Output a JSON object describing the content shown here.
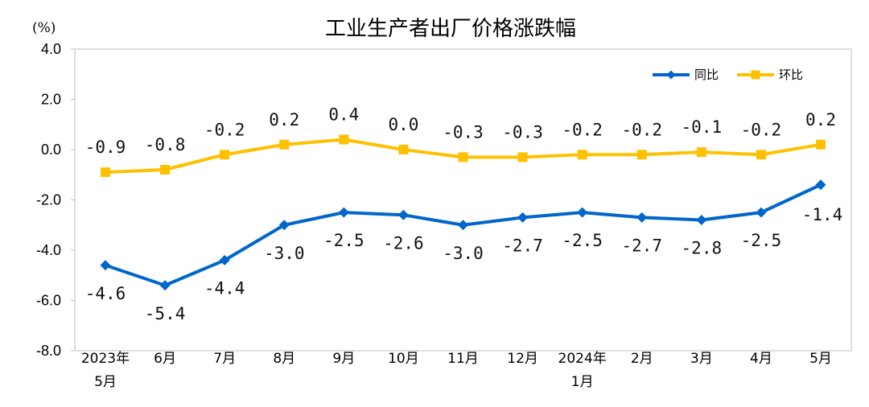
{
  "chart_data": {
    "type": "line",
    "title": "工业生产者出厂价格涨跌幅",
    "unit": "(%)",
    "ylim": [
      -8.0,
      4.0
    ],
    "yticks": [
      "4.0",
      "2.0",
      "0.0",
      "-2.0",
      "-4.0",
      "-6.0",
      "-8.0"
    ],
    "ytick_values": [
      4,
      2,
      0,
      -2,
      -4,
      -6,
      -8
    ],
    "categories": [
      [
        "2023年",
        "5月"
      ],
      [
        "6月"
      ],
      [
        "7月"
      ],
      [
        "8月"
      ],
      [
        "9月"
      ],
      [
        "10月"
      ],
      [
        "11月"
      ],
      [
        "12月"
      ],
      [
        "2024年",
        "1月"
      ],
      [
        "2月"
      ],
      [
        "3月"
      ],
      [
        "4月"
      ],
      [
        "5月"
      ]
    ],
    "legend_position": "top-right",
    "grid": false,
    "series": [
      {
        "name": "同比",
        "color": "#0066CC",
        "marker": "diamond",
        "values": [
          -4.6,
          -5.4,
          -4.4,
          -3.0,
          -2.5,
          -2.6,
          -3.0,
          -2.7,
          -2.5,
          -2.7,
          -2.8,
          -2.5,
          -1.4
        ],
        "labels": [
          "-4.6",
          "-5.4",
          "-4.4",
          "-3.0",
          "-2.5",
          "-2.6",
          "-3.0",
          "-2.7",
          "-2.5",
          "-2.7",
          "-2.8",
          "-2.5",
          "-1.4"
        ],
        "label_position": "below"
      },
      {
        "name": "环比",
        "color": "#FFC000",
        "marker": "square",
        "values": [
          -0.9,
          -0.8,
          -0.2,
          0.2,
          0.4,
          0.0,
          -0.3,
          -0.3,
          -0.2,
          -0.2,
          -0.1,
          -0.2,
          0.2
        ],
        "labels": [
          "-0.9",
          "-0.8",
          "-0.2",
          "0.2",
          "0.4",
          "0.0",
          "-0.3",
          "-0.3",
          "-0.2",
          "-0.2",
          "-0.1",
          "-0.2",
          "0.2"
        ],
        "label_position": "above"
      }
    ]
  }
}
